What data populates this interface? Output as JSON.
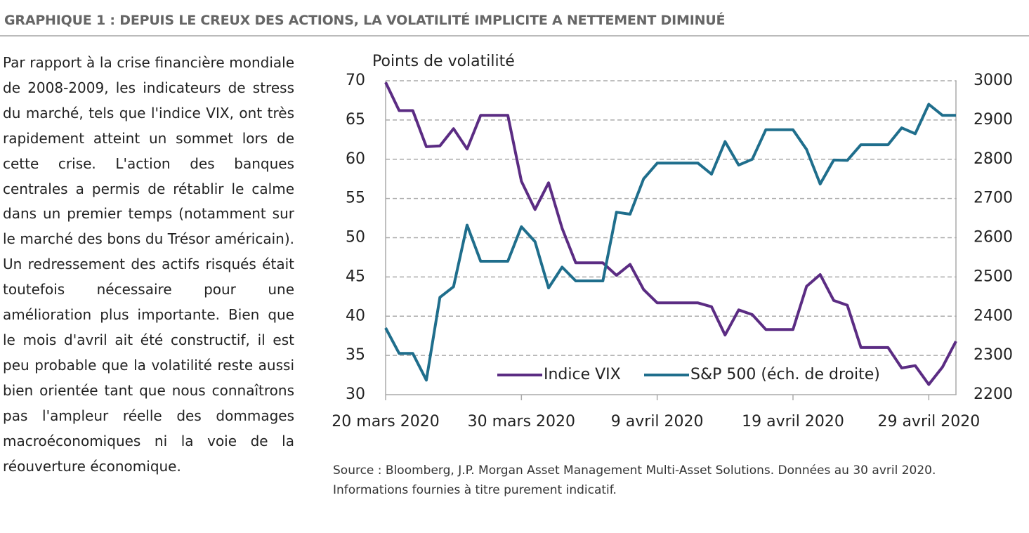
{
  "heading": "GRAPHIQUE 1 : DEPUIS LE CREUX DES ACTIONS, LA VOLATILITÉ IMPLICITE A NETTEMENT DIMINUÉ",
  "paragraph": "Par rapport à la crise financière mondiale de 2008-2009, les indicateurs de stress du marché, tels que l'indice VIX, ont très rapidement atteint un sommet lors de cette crise. L'action des banques centrales a permis de rétablir le calme dans un premier temps (notamment sur le marché des bons du Trésor américain). Un redressement des actifs risqués était toutefois nécessaire pour une amélioration plus importante. Bien que le mois d'avril ait été constructif, il est peu probable que la volatilité reste aussi bien orientée tant que nous connaîtrons pas l'ampleur réelle des dommages macroéconomiques ni la voie de la réouverture économique.",
  "source": [
    "Source : Bloomberg, J.P. Morgan Asset Management Multi-Asset Solutions. Données au 30 avril 2020.",
    "Informations fournies à titre purement indicatif."
  ],
  "chart_data": {
    "type": "line",
    "y_label": "Points de volatilité",
    "x": [
      "2020-03-20",
      "2020-03-21",
      "2020-03-22",
      "2020-03-23",
      "2020-03-24",
      "2020-03-25",
      "2020-03-26",
      "2020-03-27",
      "2020-03-28",
      "2020-03-29",
      "2020-03-30",
      "2020-03-31",
      "2020-04-01",
      "2020-04-02",
      "2020-04-03",
      "2020-04-04",
      "2020-04-05",
      "2020-04-06",
      "2020-04-07",
      "2020-04-08",
      "2020-04-09",
      "2020-04-10",
      "2020-04-11",
      "2020-04-12",
      "2020-04-13",
      "2020-04-14",
      "2020-04-15",
      "2020-04-16",
      "2020-04-17",
      "2020-04-18",
      "2020-04-19",
      "2020-04-20",
      "2020-04-21",
      "2020-04-22",
      "2020-04-23",
      "2020-04-24",
      "2020-04-25",
      "2020-04-26",
      "2020-04-27",
      "2020-04-28",
      "2020-04-29",
      "2020-04-30",
      "2020-05-01"
    ],
    "series": [
      {
        "name": "Indice VIX",
        "color": "#5b2c83",
        "axis": "y",
        "values": [
          69.8,
          66.2,
          66.2,
          61.6,
          61.7,
          63.9,
          61.3,
          65.6,
          65.6,
          65.6,
          57.2,
          53.6,
          57.0,
          51.2,
          46.8,
          46.8,
          46.8,
          45.2,
          46.6,
          43.4,
          41.7,
          41.7,
          41.7,
          41.7,
          41.2,
          37.6,
          40.8,
          40.2,
          38.3,
          38.3,
          38.3,
          43.8,
          45.3,
          42.0,
          41.4,
          36.0,
          36.0,
          36.0,
          33.4,
          33.7,
          31.3,
          33.5,
          36.8
        ]
      },
      {
        "name": "S&P 500 (éch. de droite)",
        "color": "#1f6e8c",
        "axis": "y2",
        "values": [
          2370,
          2305,
          2305,
          2237,
          2448,
          2475,
          2632,
          2540,
          2540,
          2540,
          2628,
          2590,
          2472,
          2525,
          2490,
          2490,
          2490,
          2665,
          2660,
          2750,
          2790,
          2790,
          2790,
          2790,
          2762,
          2845,
          2785,
          2800,
          2875,
          2875,
          2875,
          2825,
          2737,
          2798,
          2797,
          2837,
          2837,
          2837,
          2880,
          2865,
          2940,
          2912,
          2912
        ]
      }
    ],
    "xlim": [
      "2020-03-20",
      "2020-05-01"
    ],
    "xticks": [
      {
        "value": "2020-03-20",
        "label": "20 mars 2020"
      },
      {
        "value": "2020-03-30",
        "label": "30 mars 2020"
      },
      {
        "value": "2020-04-09",
        "label": "9 avril 2020"
      },
      {
        "value": "2020-04-19",
        "label": "19 avril 2020"
      },
      {
        "value": "2020-04-29",
        "label": "29 avril 2020"
      }
    ],
    "ylim": [
      30,
      70
    ],
    "yticks": [
      30,
      35,
      40,
      45,
      50,
      55,
      60,
      65,
      70
    ],
    "y2lim": [
      2200,
      3000
    ],
    "y2ticks": [
      2200,
      2300,
      2400,
      2500,
      2600,
      2700,
      2800,
      2900,
      3000
    ],
    "grid": true,
    "legend": "bottom"
  }
}
